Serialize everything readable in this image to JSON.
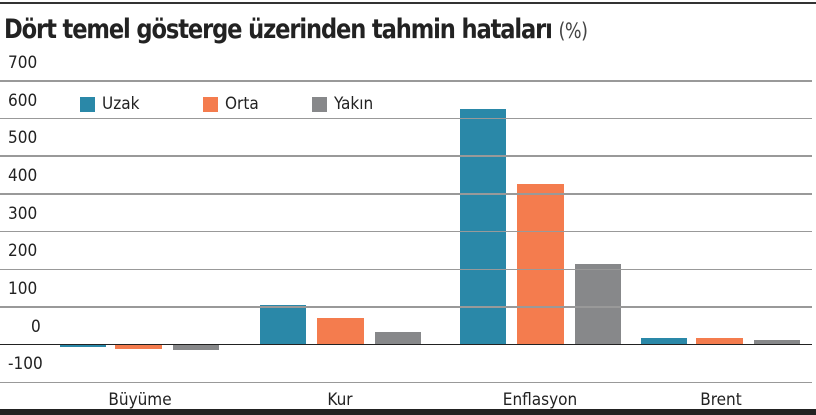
{
  "title": "Dört temel gösterge üzerinden tahmin hataları",
  "title_unit": "(%)",
  "legend": [
    {
      "label": "Uzak",
      "color": "#2a88a8"
    },
    {
      "label": "Orta",
      "color": "#f47c4e"
    },
    {
      "label": "Yakın",
      "color": "#87888a"
    }
  ],
  "y_ticks": [
    "700",
    "600",
    "500",
    "400",
    "300",
    "200",
    "100",
    "0",
    "-100"
  ],
  "x_labels": [
    "Büyüme",
    "Kur",
    "Enflasyon",
    "Brent"
  ],
  "chart_data": {
    "type": "bar",
    "title": "Dört temel gösterge üzerinden tahmin hataları (%)",
    "xlabel": "",
    "ylabel": "%",
    "categories": [
      "Büyüme",
      "Kur",
      "Enflasyon",
      "Brent"
    ],
    "series": [
      {
        "name": "Uzak",
        "color": "#2a88a8",
        "values": [
          -5,
          106,
          625,
          18
        ]
      },
      {
        "name": "Orta",
        "color": "#f47c4e",
        "values": [
          -11,
          71,
          426,
          18
        ]
      },
      {
        "name": "Yakın",
        "color": "#87888a",
        "values": [
          -13,
          34,
          214,
          12
        ]
      }
    ],
    "ylim": [
      -100,
      700
    ],
    "yticks": [
      -100,
      0,
      100,
      200,
      300,
      400,
      500,
      600,
      700
    ],
    "grid": true,
    "legend_position": "top-left inside"
  }
}
